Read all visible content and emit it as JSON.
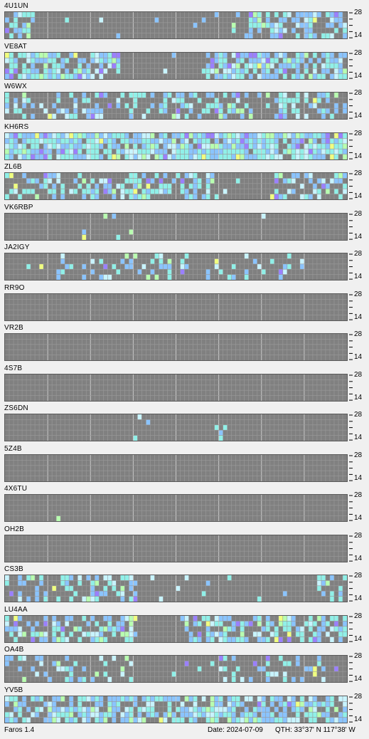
{
  "app": {
    "version_label": "Faros 1.4"
  },
  "footer": {
    "date_text": "Date: 2024-07-09",
    "qth_text": "QTH: 33°37' N   117°38' W"
  },
  "colors": {
    "grid_bg": "#808080",
    "grid_line": "#9a9a9a",
    "grid_major": "#c8c8c8",
    "sig_light": "#c8f4ff",
    "sig_cyan": "#90f0e8",
    "sig_blue": "#8ac4ff",
    "sig_purple": "#9a80ff",
    "sig_green": "#b8ffb0",
    "sig_yellow": "#f0ff80"
  },
  "band_axis": {
    "top_label": "28",
    "bottom_label": "14"
  },
  "stations": [
    {
      "callsign": "4U1UN",
      "activity": [
        [
          8,
          10,
          0,
          0,
          0,
          2,
          2,
          0,
          0,
          0,
          0,
          0,
          0,
          0,
          0,
          0,
          0,
          0,
          0,
          0,
          0,
          0,
          0,
          0,
          0,
          0,
          0,
          0,
          0,
          0,
          0,
          0,
          0,
          0,
          0,
          0,
          0,
          0,
          0,
          0,
          0,
          0,
          0,
          0,
          0,
          0,
          0,
          0,
          0,
          0,
          0,
          0,
          0,
          0,
          0,
          0,
          0,
          0,
          0,
          0,
          0,
          0,
          0,
          0,
          0,
          0,
          0,
          0,
          0,
          0,
          0,
          0,
          0,
          0,
          0,
          0,
          0,
          0,
          0,
          0
        ],
        [
          0,
          0,
          0,
          0,
          0,
          0,
          0,
          0,
          0,
          0,
          0,
          0,
          0,
          0,
          0,
          0,
          0,
          0,
          0,
          0,
          0,
          0,
          0,
          0,
          0,
          0,
          0,
          0,
          0,
          0,
          0,
          0,
          0,
          0,
          0,
          0,
          0,
          0,
          0,
          0,
          0,
          0,
          0,
          0,
          0,
          0,
          0,
          0,
          0,
          0,
          0,
          0,
          0,
          0,
          0,
          0,
          0,
          0,
          0,
          0,
          0,
          0,
          0,
          0,
          0,
          0,
          0,
          0,
          0,
          0,
          0,
          0,
          0,
          0,
          0,
          0,
          0,
          0,
          0,
          0
        ],
        [
          0,
          0,
          0,
          0,
          0,
          0,
          0,
          0,
          0,
          0,
          0,
          0,
          0,
          0,
          0,
          0,
          0,
          0,
          0,
          0,
          0,
          0,
          0,
          0,
          0,
          0,
          0,
          0,
          0,
          0,
          0,
          0,
          0,
          0,
          0,
          0,
          0,
          0,
          0,
          0,
          0,
          0,
          0,
          0,
          0,
          0,
          0,
          0,
          0,
          0,
          0,
          0,
          0,
          0,
          0,
          0,
          0,
          0,
          0,
          0,
          0,
          0,
          0,
          0,
          0,
          0,
          0,
          0,
          0,
          0,
          0,
          0,
          0,
          0,
          0,
          0,
          0,
          0,
          0,
          0
        ],
        [
          0,
          0,
          0,
          0,
          0,
          0,
          0,
          0,
          0,
          0,
          0,
          0,
          0,
          0,
          0,
          0,
          0,
          0,
          0,
          0,
          0,
          0,
          0,
          0,
          0,
          0,
          0,
          0,
          0,
          0,
          0,
          0,
          0,
          0,
          0,
          0,
          0,
          0,
          0,
          0,
          0,
          0,
          0,
          0,
          0,
          0,
          0,
          0,
          0,
          0,
          0,
          0,
          0,
          0,
          0,
          0,
          0,
          0,
          0,
          0,
          0,
          0,
          0,
          0,
          0,
          0,
          0,
          0,
          0,
          0,
          0,
          0,
          0,
          0,
          0,
          0,
          0,
          0,
          0,
          0
        ],
        [
          0,
          0,
          0,
          0,
          0,
          0,
          0,
          0,
          0,
          0,
          0,
          0,
          0,
          0,
          0,
          0,
          0,
          0,
          0,
          0,
          0,
          0,
          0,
          0,
          0,
          0,
          0,
          0,
          0,
          0,
          0,
          0,
          0,
          0,
          0,
          0,
          0,
          0,
          0,
          0,
          0,
          0,
          0,
          0,
          0,
          0,
          0,
          0,
          0,
          0,
          0,
          0,
          0,
          0,
          0,
          0,
          0,
          0,
          0,
          0,
          0,
          0,
          0,
          0,
          0,
          0,
          0,
          0,
          0,
          0,
          0,
          0,
          0,
          0,
          0,
          0,
          0,
          0,
          0,
          0
        ]
      ]
    },
    {
      "callsign": "VE8AT",
      "activity": []
    },
    {
      "callsign": "W6WX",
      "activity": []
    },
    {
      "callsign": "KH6RS",
      "activity": []
    },
    {
      "callsign": "ZL6B",
      "activity": []
    },
    {
      "callsign": "VK6RBP",
      "activity": []
    },
    {
      "callsign": "JA2IGY",
      "activity": []
    },
    {
      "callsign": "RR9O",
      "activity": []
    },
    {
      "callsign": "VR2B",
      "activity": []
    },
    {
      "callsign": "4S7B",
      "activity": []
    },
    {
      "callsign": "ZS6DN",
      "activity": []
    },
    {
      "callsign": "5Z4B",
      "activity": []
    },
    {
      "callsign": "4X6TU",
      "activity": []
    },
    {
      "callsign": "OH2B",
      "activity": []
    },
    {
      "callsign": "CS3B",
      "activity": []
    },
    {
      "callsign": "LU4AA",
      "activity": []
    },
    {
      "callsign": "OA4B",
      "activity": []
    },
    {
      "callsign": "YV5B",
      "activity": []
    }
  ]
}
